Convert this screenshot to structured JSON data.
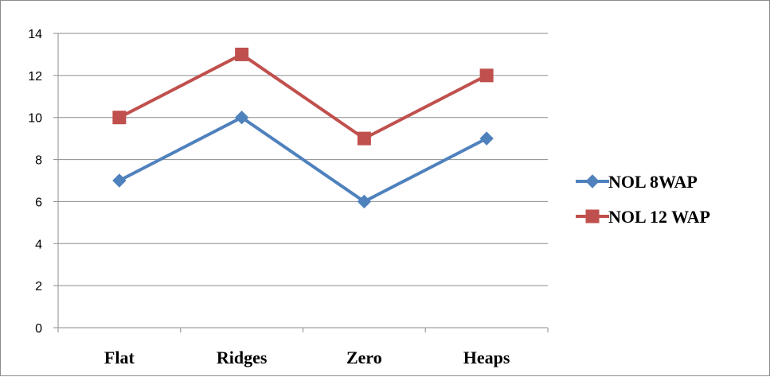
{
  "chart_data": {
    "type": "line",
    "title": "",
    "xlabel": "",
    "ylabel": "",
    "categories": [
      "Flat",
      "Ridges",
      "Zero",
      "Heaps"
    ],
    "ylim": [
      0,
      14
    ],
    "yticks": [
      0,
      2,
      4,
      6,
      8,
      10,
      12,
      14
    ],
    "grid": true,
    "legend": "right",
    "series": [
      {
        "name": "NOL 8WAP",
        "values": [
          7,
          10,
          6,
          9
        ],
        "color": "#4F81BD",
        "marker": "diamond"
      },
      {
        "name": "NOL 12 WAP",
        "values": [
          10,
          13,
          9,
          12
        ],
        "color": "#C0504D",
        "marker": "square"
      }
    ]
  }
}
